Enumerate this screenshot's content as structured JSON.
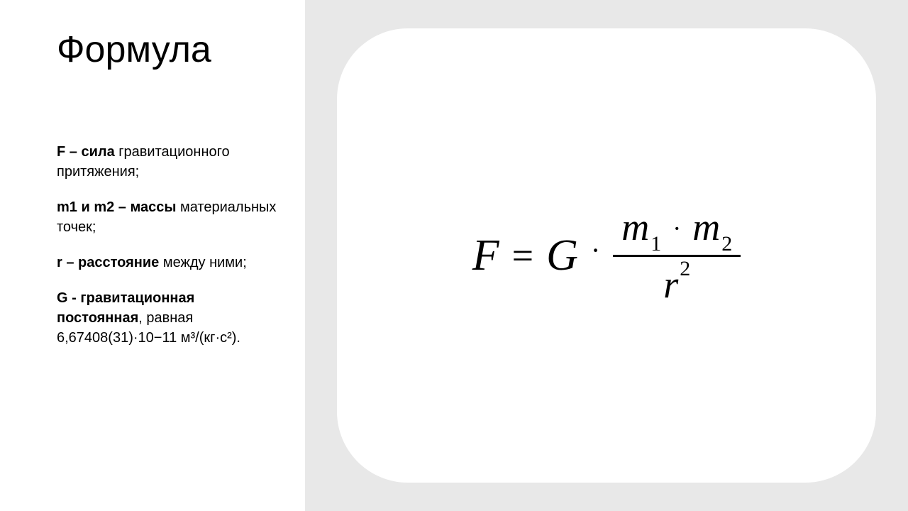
{
  "title": "Формула",
  "definitions": [
    {
      "bold": "F – сила",
      "rest": " гравитационного притяжения;"
    },
    {
      "bold": "m1 и m2 – массы",
      "rest": " материальных точек;"
    },
    {
      "bold": "r – расстояние",
      "rest": " между ними;"
    },
    {
      "bold": "G - гравитационная постоянная",
      "rest": ", равная 6,67408(31)·10−11 м³/(кг·с²)."
    }
  ],
  "formula": {
    "F": "F",
    "eq": "=",
    "G": "G",
    "dot": "·",
    "m1": "m",
    "sub1": "1",
    "m2": "m",
    "sub2": "2",
    "r": "r",
    "sup2": "2"
  },
  "colors": {
    "page_bg": "#e8e8e8",
    "panel_bg": "#ffffff",
    "text": "#000000",
    "card_bg": "#ffffff"
  },
  "layout": {
    "card_radius": 100,
    "left_width": 430
  }
}
